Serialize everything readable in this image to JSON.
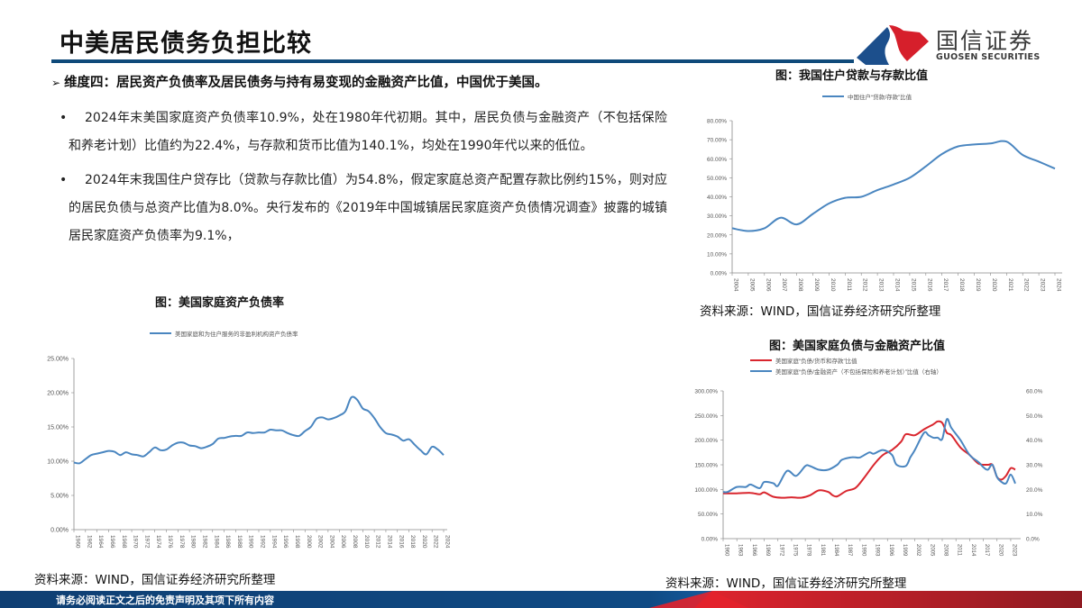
{
  "header": {
    "title": "中美居民债务负担比较",
    "logo_cn": "国信证券",
    "logo_en": "GUOSEN SECURITIES",
    "colors": {
      "rule": "#0f4a7a",
      "logo_blue": "#1c4f8c",
      "logo_red": "#d61f2b"
    }
  },
  "headline": {
    "arrow": "➢",
    "text": "维度四：居民资产负债率及居民债务与持有易变现的金融资产比值，中国优于美国。"
  },
  "bullets": [
    {
      "marker": "•",
      "text": "2024年末美国家庭资产负债率10.9%，处在1980年代初期。其中，居民负债与金融资产（不包括保险和养老计划）比值约为22.4%，与存款和货币比值为140.1%，均处在1990年代以来的低位。"
    },
    {
      "marker": "•",
      "text": "2024年末我国住户贷存比（贷款与存款比值）为54.8%，假定家庭总资产配置存款比例约15%，则对应的居民负债与总资产比值为8.0%。央行发布的《2019年中国城镇居民家庭资产负债情况调查》披露的城镇居民家庭资产负债率为9.1%，"
    }
  ],
  "footer": {
    "disclaimer": "请务必阅读正文之后的免责声明及其项下所有内容",
    "colors": {
      "blue": "#0f4a7a",
      "red": "#c8202a"
    }
  },
  "chart_data": [
    {
      "id": "us_household_leverage",
      "type": "line",
      "title": "图：美国家庭资产负债率",
      "source": "资料来源：WIND，国信证券经济研究所整理",
      "xlabel": "",
      "ylabel": "",
      "ylim": [
        0,
        25
      ],
      "y_ticks": [
        "0.00%",
        "5.00%",
        "10.00%",
        "15.00%",
        "20.00%",
        "25.00%"
      ],
      "x_tick_labels": [
        "1960",
        "1962",
        "1964",
        "1966",
        "1968",
        "1970",
        "1972",
        "1974",
        "1976",
        "1978",
        "1980",
        "1982",
        "1984",
        "1986",
        "1988",
        "1990",
        "1992",
        "1994",
        "1996",
        "1998",
        "2000",
        "2002",
        "2004",
        "2006",
        "2008",
        "2010",
        "2012",
        "2014",
        "2016",
        "2018",
        "2020",
        "2022",
        "2024"
      ],
      "grid": false,
      "legend_position": "top",
      "series": [
        {
          "name": "美国家庭和为住户服务的非盈利机构资产负债率",
          "color": "#4a86c0",
          "x": [
            1960,
            1961,
            1962,
            1963,
            1964,
            1965,
            1966,
            1967,
            1968,
            1969,
            1970,
            1971,
            1972,
            1973,
            1974,
            1975,
            1976,
            1977,
            1978,
            1979,
            1980,
            1981,
            1982,
            1983,
            1984,
            1985,
            1986,
            1987,
            1988,
            1989,
            1990,
            1991,
            1992,
            1993,
            1994,
            1995,
            1996,
            1997,
            1998,
            1999,
            2000,
            2001,
            2002,
            2003,
            2004,
            2005,
            2006,
            2007,
            2008,
            2009,
            2010,
            2011,
            2012,
            2013,
            2014,
            2015,
            2016,
            2017,
            2018,
            2019,
            2020,
            2021,
            2022,
            2023,
            2024
          ],
          "values": [
            9.8,
            9.7,
            10.3,
            10.9,
            11.1,
            11.3,
            11.5,
            11.4,
            10.9,
            11.3,
            11.0,
            10.9,
            10.7,
            11.3,
            12.0,
            11.6,
            11.7,
            12.3,
            12.7,
            12.7,
            12.3,
            12.2,
            11.9,
            12.1,
            12.5,
            13.3,
            13.4,
            13.6,
            13.7,
            13.7,
            14.2,
            14.1,
            14.2,
            14.2,
            14.6,
            14.5,
            14.5,
            14.1,
            13.8,
            13.7,
            14.4,
            15.0,
            16.2,
            16.4,
            16.1,
            16.3,
            16.7,
            17.3,
            19.3,
            19.0,
            17.7,
            17.3,
            16.3,
            15.0,
            14.1,
            13.9,
            13.6,
            13.0,
            13.2,
            12.4,
            11.6,
            11.0,
            12.1,
            11.7,
            10.9
          ]
        }
      ]
    },
    {
      "id": "cn_household_loan_deposit",
      "type": "line",
      "title": "图：我国住户贷款与存款比值",
      "source": "资料来源：WIND，国信证券经济研究所整理",
      "xlabel": "",
      "ylabel": "",
      "ylim": [
        0,
        80
      ],
      "y_ticks": [
        "0.00%",
        "10.00%",
        "20.00%",
        "30.00%",
        "40.00%",
        "50.00%",
        "60.00%",
        "70.00%",
        "80.00%"
      ],
      "x_tick_labels": [
        "2004",
        "2005",
        "2006",
        "2007",
        "2008",
        "2009",
        "2010",
        "2011",
        "2012",
        "2013",
        "2014",
        "2015",
        "2016",
        "2017",
        "2018",
        "2019",
        "2020",
        "2021",
        "2022",
        "2023",
        "2024"
      ],
      "grid": false,
      "legend_position": "top",
      "series": [
        {
          "name": "中国住户“贷款/存款”比值",
          "color": "#4a86c0",
          "x": [
            2004,
            2005,
            2006,
            2007,
            2008,
            2009,
            2010,
            2011,
            2012,
            2013,
            2014,
            2015,
            2016,
            2017,
            2018,
            2019,
            2020,
            2021,
            2022,
            2023,
            2024
          ],
          "values": [
            23.5,
            22.0,
            23.5,
            29.0,
            25.5,
            31.0,
            36.5,
            39.5,
            40.0,
            43.5,
            46.5,
            50.0,
            56.0,
            62.5,
            66.5,
            67.5,
            68.0,
            69.0,
            62.0,
            58.5,
            54.8
          ]
        }
      ]
    },
    {
      "id": "us_debt_financial_assets",
      "type": "line",
      "title": "图：美国家庭负债与金融资产比值",
      "source": "资料来源：WIND，国信证券经济研究所整理",
      "xlabel": "",
      "ylabel": "",
      "ylim": [
        0,
        300
      ],
      "y2lim": [
        0,
        60
      ],
      "y_ticks": [
        "0.00%",
        "50.00%",
        "100.00%",
        "150.00%",
        "200.00%",
        "250.00%",
        "300.00%"
      ],
      "y2_ticks": [
        "0.0%",
        "10.0%",
        "20.0%",
        "30.0%",
        "40.0%",
        "50.0%",
        "60.0%"
      ],
      "x_tick_labels": [
        "1960",
        "1963",
        "1966",
        "1969",
        "1972",
        "1975",
        "1978",
        "1981",
        "1984",
        "1987",
        "1990",
        "1993",
        "1996",
        "1999",
        "2002",
        "2005",
        "2008",
        "2011",
        "2014",
        "2017",
        "2020",
        "2023"
      ],
      "grid": false,
      "legend_position": "top",
      "series": [
        {
          "name": "美国家庭“负债/货币和存款”比值",
          "axis": "left",
          "color": "#d9262e",
          "x": [
            1960,
            1963,
            1966,
            1968,
            1969,
            1971,
            1973,
            1975,
            1977,
            1979,
            1981,
            1983,
            1984,
            1985,
            1987,
            1989,
            1991,
            1993,
            1995,
            1997,
            1999,
            2000,
            2002,
            2004,
            2006,
            2007,
            2008,
            2009,
            2010,
            2012,
            2014,
            2016,
            2018,
            2019,
            2020,
            2021,
            2022,
            2023,
            2024
          ],
          "values": [
            92,
            92,
            93,
            90,
            94,
            85,
            83,
            84,
            83,
            88,
            98,
            95,
            88,
            86,
            97,
            103,
            125,
            150,
            170,
            180,
            197,
            212,
            210,
            222,
            232,
            238,
            235,
            215,
            210,
            185,
            170,
            152,
            150,
            150,
            125,
            120,
            128,
            143,
            140.1
          ]
        },
        {
          "name": "美国家庭“负债/金融资产（不包括保险和养老计划）”比值（右轴）",
          "axis": "right",
          "color": "#4a86c0",
          "x": [
            1960,
            1961,
            1963,
            1965,
            1966,
            1968,
            1969,
            1971,
            1972,
            1974,
            1976,
            1978,
            1979,
            1981,
            1983,
            1985,
            1986,
            1988,
            1989,
            1990,
            1992,
            1993,
            1995,
            1997,
            1998,
            2000,
            2001,
            2002,
            2004,
            2005,
            2006,
            2007,
            2008,
            2009,
            2010,
            2012,
            2014,
            2016,
            2017,
            2018,
            2019,
            2020,
            2021,
            2022,
            2023,
            2024
          ],
          "values": [
            19,
            19,
            21,
            21,
            22,
            20.5,
            23,
            22.5,
            21.5,
            27.5,
            25.5,
            29.5,
            29.5,
            28,
            28,
            30,
            32,
            33,
            33,
            33,
            35,
            34.5,
            36,
            34,
            30,
            29.5,
            33,
            36,
            43,
            42,
            41,
            41,
            40.5,
            48.5,
            45,
            40,
            34,
            31,
            29,
            28,
            30,
            25,
            23,
            22.5,
            26,
            22.4
          ]
        }
      ]
    }
  ]
}
